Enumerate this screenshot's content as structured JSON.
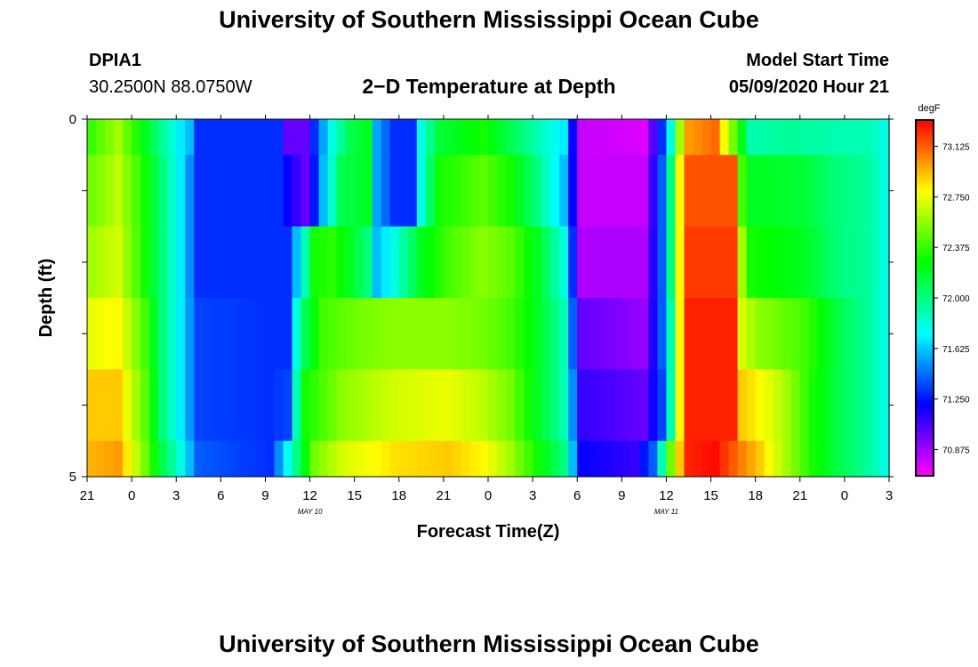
{
  "header": {
    "title": "University of Southern Mississippi Ocean Cube",
    "station": "DPIA1",
    "coords": "30.2500N 88.0750W",
    "plot_title": "2−D Temperature at Depth",
    "model_label": "Model Start Time",
    "model_time": "05/09/2020 Hour 21"
  },
  "footer": {
    "title": "University of Southern Mississippi Ocean Cube"
  },
  "chart_data": {
    "type": "heatmap",
    "title": "2-D Temperature at Depth",
    "xlabel": "Forecast Time(Z)",
    "ylabel": "Depth (ft)",
    "x_tick_labels": [
      "21",
      "0",
      "3",
      "6",
      "9",
      "12",
      "15",
      "18",
      "21",
      "0",
      "3",
      "6",
      "9",
      "12",
      "15",
      "18",
      "21",
      "0",
      "3"
    ],
    "y_range": [
      0,
      5
    ],
    "y_tick_labels": [
      "0",
      "5"
    ],
    "date_labels": [
      {
        "text": "MAY  10",
        "hour_index": 5
      },
      {
        "text": "MAY  11",
        "hour_index": 13
      }
    ],
    "colorbar": {
      "unit": "degF",
      "range": [
        70.68,
        73.32
      ],
      "ticks": [
        "73.125",
        "72.750",
        "72.375",
        "72.000",
        "71.625",
        "71.250",
        "70.875"
      ]
    },
    "hours": 54,
    "depth_rows": [
      {
        "depth_range": [
          0,
          0.5
        ],
        "anchors": [
          [
            0,
            72.38
          ],
          [
            3,
            72.6
          ],
          [
            6,
            72.2
          ],
          [
            8,
            71.95
          ],
          [
            10,
            71.7
          ],
          [
            11,
            71.6
          ],
          [
            12,
            71.3
          ],
          [
            21,
            71.3
          ],
          [
            22,
            71.0
          ],
          [
            24,
            71.0
          ],
          [
            25,
            71.3
          ],
          [
            27,
            71.8
          ],
          [
            29,
            72.1
          ],
          [
            31,
            72.2
          ],
          [
            32,
            71.55
          ],
          [
            34,
            71.3
          ],
          [
            36,
            71.3
          ],
          [
            37,
            71.8
          ],
          [
            39,
            72.15
          ],
          [
            44,
            72.3
          ],
          [
            47,
            72.1
          ],
          [
            50,
            71.9
          ],
          [
            53,
            71.7
          ],
          [
            54,
            71.2
          ],
          [
            55,
            70.8
          ],
          [
            62,
            70.75
          ],
          [
            64,
            71.3
          ],
          [
            65,
            71.8
          ],
          [
            66,
            72.6
          ],
          [
            67,
            73.0
          ],
          [
            70,
            73.1
          ],
          [
            71,
            72.8
          ],
          [
            72,
            72.5
          ],
          [
            74,
            71.9
          ],
          [
            78,
            71.95
          ],
          [
            84,
            71.9
          ],
          [
            87,
            71.9
          ],
          [
            89,
            71.8
          ]
        ]
      },
      {
        "depth_range": [
          0.5,
          1.5
        ],
        "anchors": [
          [
            0,
            72.5
          ],
          [
            3,
            72.65
          ],
          [
            6,
            72.3
          ],
          [
            8,
            72.0
          ],
          [
            10,
            71.7
          ],
          [
            12,
            71.3
          ],
          [
            21,
            71.3
          ],
          [
            23,
            71.1
          ],
          [
            24,
            71.0
          ],
          [
            25,
            71.25
          ],
          [
            26,
            71.6
          ],
          [
            28,
            72.1
          ],
          [
            31,
            72.2
          ],
          [
            32,
            71.55
          ],
          [
            34,
            71.3
          ],
          [
            36,
            71.3
          ],
          [
            37,
            71.8
          ],
          [
            39,
            72.3
          ],
          [
            44,
            72.45
          ],
          [
            47,
            72.3
          ],
          [
            50,
            72.0
          ],
          [
            53,
            71.6
          ],
          [
            54,
            71.2
          ],
          [
            55,
            70.8
          ],
          [
            62,
            70.8
          ],
          [
            64,
            71.4
          ],
          [
            65,
            72.0
          ],
          [
            66,
            72.8
          ],
          [
            67,
            73.15
          ],
          [
            72,
            73.15
          ],
          [
            73,
            72.4
          ],
          [
            74,
            72.2
          ],
          [
            80,
            72.15
          ],
          [
            84,
            72.0
          ],
          [
            87,
            71.95
          ],
          [
            89,
            71.8
          ]
        ]
      },
      {
        "depth_range": [
          1.5,
          2.5
        ],
        "anchors": [
          [
            0,
            72.6
          ],
          [
            3,
            72.7
          ],
          [
            6,
            72.3
          ],
          [
            8,
            72.0
          ],
          [
            10,
            71.7
          ],
          [
            12,
            71.3
          ],
          [
            20,
            71.3
          ],
          [
            22,
            71.3
          ],
          [
            23,
            71.6
          ],
          [
            24,
            71.9
          ],
          [
            25,
            72.3
          ],
          [
            27,
            72.35
          ],
          [
            29,
            72.2
          ],
          [
            31,
            72.0
          ],
          [
            32,
            71.6
          ],
          [
            34,
            71.8
          ],
          [
            37,
            72.2
          ],
          [
            40,
            72.4
          ],
          [
            44,
            72.55
          ],
          [
            47,
            72.45
          ],
          [
            50,
            72.2
          ],
          [
            53,
            71.8
          ],
          [
            54,
            71.3
          ],
          [
            55,
            70.85
          ],
          [
            62,
            70.85
          ],
          [
            64,
            71.4
          ],
          [
            65,
            72.0
          ],
          [
            66,
            72.8
          ],
          [
            67,
            73.2
          ],
          [
            72,
            73.2
          ],
          [
            73,
            72.6
          ],
          [
            74,
            72.3
          ],
          [
            80,
            72.2
          ],
          [
            84,
            72.0
          ],
          [
            87,
            71.95
          ],
          [
            89,
            71.8
          ]
        ]
      },
      {
        "depth_range": [
          2.5,
          3.5
        ],
        "anchors": [
          [
            0,
            72.75
          ],
          [
            3,
            72.8
          ],
          [
            6,
            72.4
          ],
          [
            8,
            72.0
          ],
          [
            10,
            71.7
          ],
          [
            12,
            71.35
          ],
          [
            20,
            71.3
          ],
          [
            22,
            71.3
          ],
          [
            23,
            71.8
          ],
          [
            24,
            72.1
          ],
          [
            26,
            72.4
          ],
          [
            30,
            72.5
          ],
          [
            34,
            72.55
          ],
          [
            40,
            72.55
          ],
          [
            44,
            72.5
          ],
          [
            47,
            72.4
          ],
          [
            50,
            72.2
          ],
          [
            53,
            71.9
          ],
          [
            54,
            71.4
          ],
          [
            55,
            71.0
          ],
          [
            62,
            70.9
          ],
          [
            64,
            71.4
          ],
          [
            65,
            71.9
          ],
          [
            66,
            72.8
          ],
          [
            67,
            73.25
          ],
          [
            72,
            73.25
          ],
          [
            73,
            72.7
          ],
          [
            75,
            72.55
          ],
          [
            80,
            72.4
          ],
          [
            84,
            72.1
          ],
          [
            87,
            71.95
          ],
          [
            89,
            71.8
          ]
        ]
      },
      {
        "depth_range": [
          3.5,
          4.5
        ],
        "anchors": [
          [
            0,
            72.9
          ],
          [
            3,
            72.9
          ],
          [
            6,
            72.45
          ],
          [
            8,
            72.0
          ],
          [
            10,
            71.7
          ],
          [
            12,
            71.35
          ],
          [
            20,
            71.3
          ],
          [
            22,
            71.35
          ],
          [
            23,
            71.9
          ],
          [
            24,
            72.3
          ],
          [
            28,
            72.55
          ],
          [
            34,
            72.7
          ],
          [
            40,
            72.75
          ],
          [
            44,
            72.65
          ],
          [
            47,
            72.5
          ],
          [
            50,
            72.2
          ],
          [
            53,
            71.9
          ],
          [
            54,
            71.5
          ],
          [
            55,
            71.1
          ],
          [
            62,
            71.0
          ],
          [
            64,
            71.35
          ],
          [
            65,
            71.9
          ],
          [
            66,
            72.8
          ],
          [
            67,
            73.25
          ],
          [
            72,
            73.25
          ],
          [
            73,
            72.9
          ],
          [
            75,
            72.8
          ],
          [
            78,
            72.6
          ],
          [
            81,
            72.3
          ],
          [
            84,
            72.1
          ],
          [
            87,
            71.95
          ],
          [
            89,
            71.8
          ]
        ]
      },
      {
        "depth_range": [
          4.5,
          5
        ],
        "anchors": [
          [
            0,
            72.95
          ],
          [
            3,
            73.0
          ],
          [
            6,
            72.5
          ],
          [
            8,
            72.1
          ],
          [
            10,
            71.8
          ],
          [
            12,
            71.4
          ],
          [
            20,
            71.3
          ],
          [
            21,
            71.5
          ],
          [
            23,
            72.0
          ],
          [
            25,
            72.5
          ],
          [
            28,
            72.7
          ],
          [
            34,
            72.85
          ],
          [
            40,
            72.9
          ],
          [
            44,
            72.8
          ],
          [
            47,
            72.6
          ],
          [
            50,
            72.3
          ],
          [
            53,
            72.0
          ],
          [
            54,
            71.6
          ],
          [
            55,
            71.2
          ],
          [
            61,
            71.1
          ],
          [
            63,
            71.4
          ],
          [
            64,
            71.9
          ],
          [
            65,
            72.5
          ],
          [
            66,
            72.9
          ],
          [
            67,
            73.25
          ],
          [
            70,
            73.3
          ],
          [
            73,
            73.05
          ],
          [
            75,
            72.9
          ],
          [
            78,
            72.6
          ],
          [
            81,
            72.3
          ],
          [
            84,
            72.1
          ],
          [
            87,
            71.95
          ],
          [
            89,
            71.8
          ]
        ]
      }
    ]
  }
}
